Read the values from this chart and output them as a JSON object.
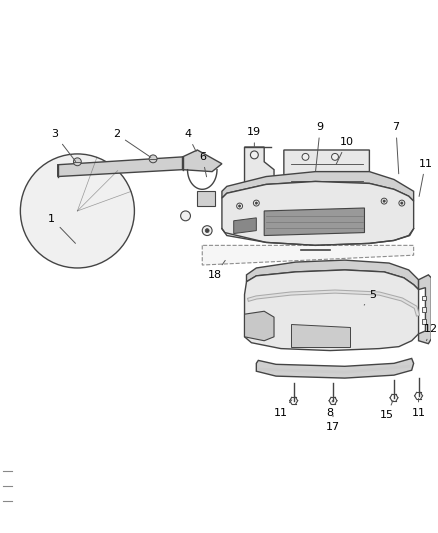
{
  "bg_color": "#f5f5f5",
  "line_color": "#444444",
  "label_color": "#000000",
  "fig_width": 4.38,
  "fig_height": 5.33,
  "dpi": 100,
  "fill_light": "#e8e8e8",
  "fill_mid": "#d0d0d0",
  "fill_dark": "#b8b8b8",
  "fill_white": "#f0f0f0"
}
